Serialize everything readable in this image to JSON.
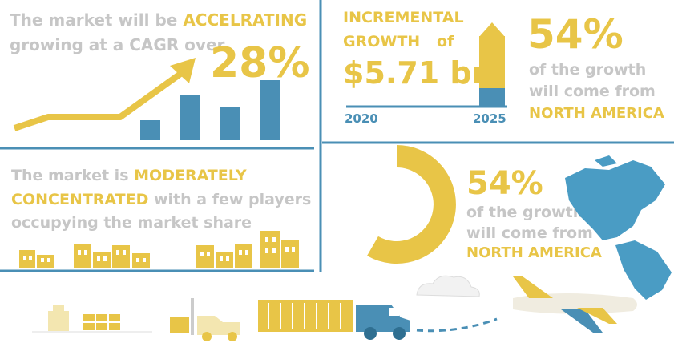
{
  "panels": {
    "cagr": {
      "line1": "The market will be",
      "highlight": "ACCELRATING",
      "line2": "growing at a CAGR over",
      "value": "28%"
    },
    "incremental": {
      "line1": "INCREMENTAL",
      "line2": "GROWTH",
      "of": "of",
      "amount": "$5.71 bn",
      "start_year": "2020",
      "end_year": "2025",
      "share": "54%",
      "line3": "of the growth",
      "line4": "will come from",
      "region": "NORTH AMERICA"
    },
    "concentration": {
      "line1": "The market is",
      "highlight1": "MODERATELY",
      "highlight2": "CONCENTRATED",
      "line2": "with a few players",
      "line3": "occupying the market share"
    },
    "region": {
      "share": "54%",
      "line1": "of the growth",
      "line2": "will come from",
      "region": "NORTH AMERICA"
    }
  }
}
